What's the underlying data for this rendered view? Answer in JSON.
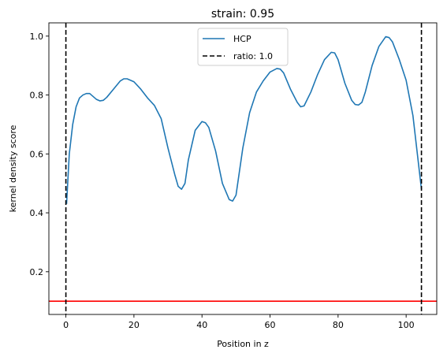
{
  "chart_data": {
    "type": "line",
    "title": "strain: 0.95",
    "xlabel": "Position in z",
    "ylabel": "kernel density score",
    "xlim": [
      -5,
      109
    ],
    "ylim": [
      0.055,
      1.045
    ],
    "xticks": [
      0,
      20,
      40,
      60,
      80,
      100
    ],
    "xtick_labels": [
      "0",
      "20",
      "40",
      "60",
      "80",
      "100"
    ],
    "yticks": [
      0.2,
      0.4,
      0.6,
      0.8,
      1.0
    ],
    "ytick_labels": [
      "0.2",
      "0.4",
      "0.6",
      "0.8",
      "1.0"
    ],
    "grid": false,
    "legend": {
      "placement": "top-center"
    },
    "series": [
      {
        "name": "HCP",
        "color": "#1f77b4",
        "style": "solid",
        "points": [
          [
            0.2,
            0.43
          ],
          [
            1,
            0.6
          ],
          [
            2,
            0.7
          ],
          [
            3,
            0.76
          ],
          [
            4,
            0.79
          ],
          [
            5,
            0.8
          ],
          [
            6,
            0.805
          ],
          [
            7,
            0.805
          ],
          [
            8,
            0.795
          ],
          [
            9,
            0.785
          ],
          [
            10,
            0.78
          ],
          [
            11,
            0.782
          ],
          [
            12,
            0.792
          ],
          [
            14,
            0.82
          ],
          [
            16,
            0.848
          ],
          [
            17,
            0.855
          ],
          [
            18,
            0.855
          ],
          [
            20,
            0.845
          ],
          [
            22,
            0.82
          ],
          [
            24,
            0.79
          ],
          [
            26,
            0.765
          ],
          [
            28,
            0.72
          ],
          [
            30,
            0.62
          ],
          [
            32,
            0.53
          ],
          [
            33,
            0.49
          ],
          [
            34,
            0.48
          ],
          [
            35,
            0.5
          ],
          [
            36,
            0.58
          ],
          [
            38,
            0.68
          ],
          [
            40,
            0.71
          ],
          [
            41,
            0.706
          ],
          [
            42,
            0.69
          ],
          [
            44,
            0.61
          ],
          [
            46,
            0.5
          ],
          [
            48,
            0.445
          ],
          [
            49,
            0.44
          ],
          [
            50,
            0.46
          ],
          [
            52,
            0.62
          ],
          [
            54,
            0.74
          ],
          [
            56,
            0.81
          ],
          [
            58,
            0.848
          ],
          [
            60,
            0.878
          ],
          [
            62,
            0.89
          ],
          [
            63,
            0.888
          ],
          [
            64,
            0.875
          ],
          [
            66,
            0.82
          ],
          [
            68,
            0.775
          ],
          [
            69,
            0.76
          ],
          [
            70,
            0.763
          ],
          [
            72,
            0.81
          ],
          [
            74,
            0.87
          ],
          [
            76,
            0.92
          ],
          [
            78,
            0.945
          ],
          [
            79,
            0.943
          ],
          [
            80,
            0.92
          ],
          [
            82,
            0.84
          ],
          [
            84,
            0.782
          ],
          [
            85,
            0.768
          ],
          [
            86,
            0.766
          ],
          [
            87,
            0.775
          ],
          [
            88,
            0.81
          ],
          [
            90,
            0.9
          ],
          [
            92,
            0.965
          ],
          [
            94,
            0.998
          ],
          [
            95,
            0.995
          ],
          [
            96,
            0.98
          ],
          [
            98,
            0.92
          ],
          [
            100,
            0.85
          ],
          [
            102,
            0.73
          ],
          [
            103.5,
            0.58
          ],
          [
            104.5,
            0.48
          ]
        ]
      },
      {
        "name": "ratio: 1.0",
        "color": "#000000",
        "style": "dashed",
        "vlines": [
          0,
          104.5
        ]
      }
    ],
    "hlines": [
      {
        "y": 0.1,
        "color": "#ff0000"
      }
    ]
  }
}
